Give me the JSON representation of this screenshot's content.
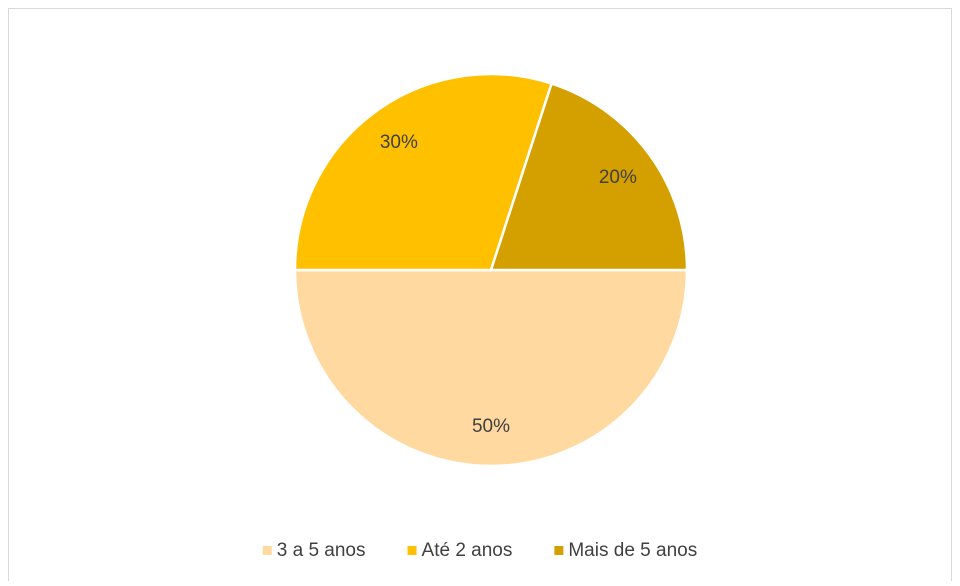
{
  "chart_data": {
    "type": "pie",
    "categories": [
      "3 a 5 anos",
      "Até 2 anos",
      "Mais de 5 anos"
    ],
    "values": [
      50,
      30,
      20
    ],
    "value_labels": [
      "50%",
      "30%",
      "20%"
    ],
    "colors": [
      "#FFD9A0",
      "#FFC000",
      "#D4A000"
    ],
    "legend": "bottom"
  }
}
